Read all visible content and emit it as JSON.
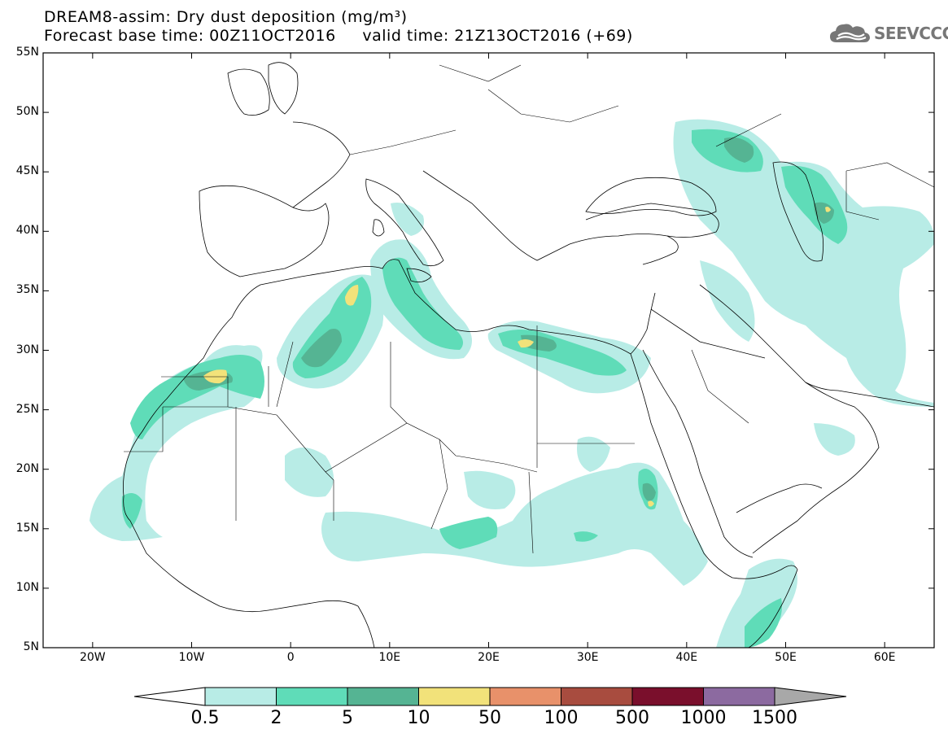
{
  "title": {
    "line1": "DREAM8-assim: Dry dust deposition (mg/m³)",
    "line2": "Forecast base time: 00Z11OCT2016     valid time: 21Z13OCT2016 (+69)"
  },
  "logo": {
    "icon": "cloud-icon",
    "text": "SEEVCCC"
  },
  "map": {
    "lon_range": [
      -25,
      65
    ],
    "lat_range": [
      5,
      55
    ],
    "lat_ticks": [
      {
        "value": 55,
        "label": "55N"
      },
      {
        "value": 50,
        "label": "50N"
      },
      {
        "value": 45,
        "label": "45N"
      },
      {
        "value": 40,
        "label": "40N"
      },
      {
        "value": 35,
        "label": "35N"
      },
      {
        "value": 30,
        "label": "30N"
      },
      {
        "value": 25,
        "label": "25N"
      },
      {
        "value": 20,
        "label": "20N"
      },
      {
        "value": 15,
        "label": "15N"
      },
      {
        "value": 10,
        "label": "10N"
      },
      {
        "value": 5,
        "label": "5N"
      }
    ],
    "lon_ticks": [
      {
        "value": -20,
        "label": "20W"
      },
      {
        "value": -10,
        "label": "10W"
      },
      {
        "value": 0,
        "label": "0"
      },
      {
        "value": 10,
        "label": "10E"
      },
      {
        "value": 20,
        "label": "20E"
      },
      {
        "value": 30,
        "label": "30E"
      },
      {
        "value": 40,
        "label": "40E"
      },
      {
        "value": 50,
        "label": "50E"
      },
      {
        "value": 60,
        "label": "60E"
      }
    ]
  },
  "colorbar": {
    "colors": [
      "#b8ece6",
      "#5fdcb8",
      "#55b493",
      "#f2e27a",
      "#e8916a",
      "#a84c3f",
      "#7a0f2c",
      "#8c6aa0",
      "#a8a8a8"
    ],
    "labels": [
      "0.5",
      "2",
      "5",
      "10",
      "50",
      "100",
      "500",
      "1000",
      "1500"
    ]
  }
}
